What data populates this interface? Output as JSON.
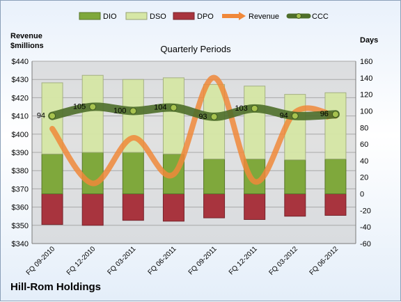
{
  "company": "Hill-Rom Holdings",
  "chart_data": {
    "type": "bar",
    "title": "Quarterly Periods",
    "left_axis_label_line1": "Revenue",
    "left_axis_label_line2": "$millions",
    "right_axis_label": "Days",
    "categories": [
      "FQ 09-2010",
      "FQ 12-2010",
      "FQ 03-2011",
      "FQ 06-2011",
      "FQ 09-2011",
      "FQ 12-2011",
      "FQ 03-2012",
      "FQ 06-2012"
    ],
    "left_ylim": [
      340,
      440
    ],
    "left_ticks": [
      "$340",
      "$350",
      "$360",
      "$370",
      "$380",
      "$390",
      "$400",
      "$410",
      "$420",
      "$430",
      "$440"
    ],
    "right_ylim": [
      -60,
      160
    ],
    "right_ticks": [
      "-60",
      "-40",
      "-20",
      "0",
      "20",
      "40",
      "60",
      "80",
      "100",
      "120",
      "140",
      "160"
    ],
    "legend_position": "top",
    "legend": [
      "DIO",
      "DSO",
      "DPO",
      "Revenue",
      "CCC"
    ],
    "colors": {
      "DIO": "#7fa83c",
      "DSO": "#d6e7a6",
      "DPO": "#a8343e",
      "Revenue": "#f0883a",
      "CCC": "#4e6e2a"
    },
    "series": [
      {
        "name": "DIO",
        "axis": "right",
        "values": [
          48,
          50,
          50,
          48,
          42,
          42,
          41,
          42
        ]
      },
      {
        "name": "DSO",
        "axis": "right",
        "values": [
          86,
          93,
          88,
          92,
          90,
          88,
          79,
          80
        ]
      },
      {
        "name": "DPO",
        "axis": "right",
        "values": [
          -37,
          -38,
          -32,
          -33,
          -29,
          -31,
          -27,
          -26
        ]
      },
      {
        "name": "Revenue",
        "axis": "left",
        "values": [
          403,
          373,
          398,
          378,
          431,
          374,
          412,
          410
        ]
      },
      {
        "name": "CCC",
        "axis": "right",
        "values": [
          94,
          105,
          100,
          104,
          93,
          103,
          94,
          96
        ]
      }
    ],
    "ccc_labels": [
      "94",
      "105",
      "100",
      "104",
      "93",
      "103",
      "94",
      "96"
    ]
  }
}
